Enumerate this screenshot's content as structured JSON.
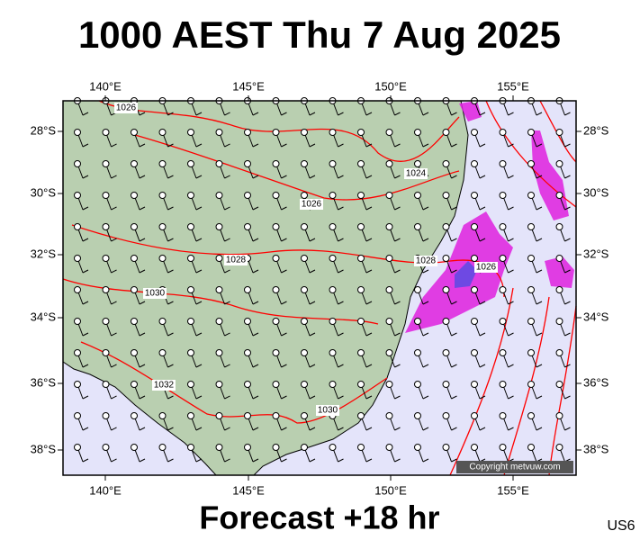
{
  "header": {
    "title": "1000 AEST Thu 7 Aug 2025"
  },
  "footer": {
    "forecast": "Forecast +18 hr",
    "code": "US6"
  },
  "map": {
    "copyright": "Copyright metvuw.com",
    "lon_labels": [
      "140°E",
      "145°E",
      "150°E",
      "155°E"
    ],
    "lat_labels": [
      "28°S",
      "30°S",
      "32°S",
      "34°S",
      "36°S",
      "38°S"
    ],
    "isobar_labels": [
      "1026",
      "1024",
      "1026",
      "1028",
      "1030",
      "1032",
      "1028",
      "1026",
      "1030"
    ]
  }
}
